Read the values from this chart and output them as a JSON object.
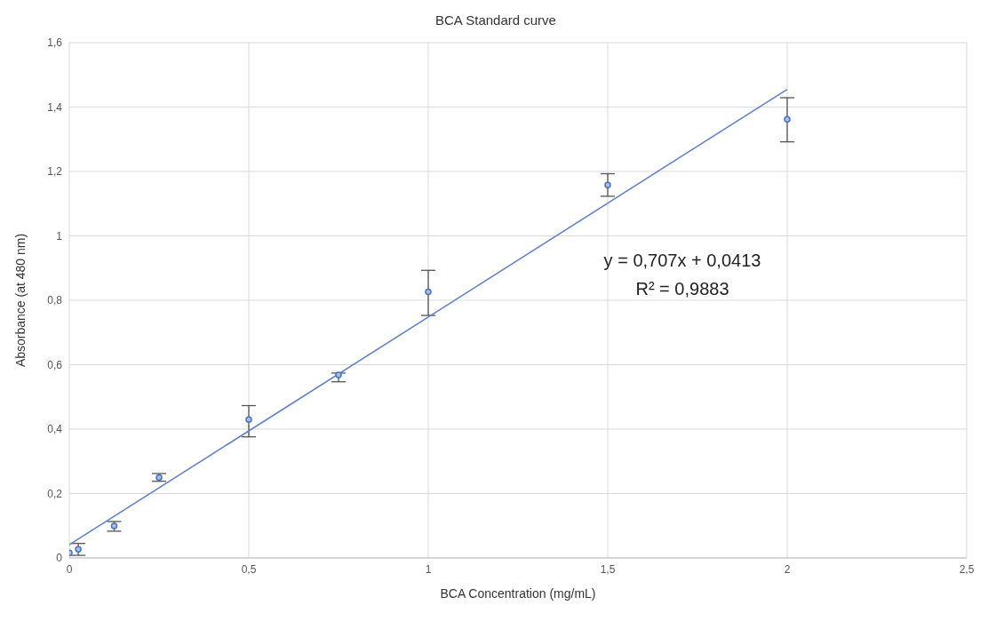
{
  "chart_data": {
    "type": "scatter",
    "title": "BCA Standard curve",
    "xlabel": "BCA Concentration (mg/mL)",
    "ylabel": "Absorbance (at 480 nm)",
    "x": [
      0,
      0.025,
      0.125,
      0.25,
      0.5,
      0.75,
      1,
      1.5,
      2
    ],
    "series": [
      {
        "color": "#4472c4",
        "marker": "circle",
        "values": [
          0.016,
          0.027,
          0.099,
          0.25,
          0.43,
          0.568,
          0.826,
          1.158,
          1.362
        ],
        "errors": [
          null,
          [
            0.008,
            0.045
          ],
          [
            0.083,
            0.113
          ],
          [
            0.238,
            0.262
          ],
          [
            0.376,
            0.473
          ],
          [
            0.547,
            0.574
          ],
          [
            0.753,
            0.893
          ],
          [
            1.123,
            1.193
          ],
          [
            1.292,
            1.429
          ]
        ]
      },
      {
        "type": "line",
        "color": "#5b7fc7",
        "x": [
          0,
          2
        ],
        "values": [
          0.041,
          1.455
        ]
      }
    ],
    "annotations": [
      "y = 0,707x + 0,0413",
      "R² = 0,9883"
    ],
    "xlim": [
      0,
      2.5
    ],
    "xticks": [
      0,
      {
        "value": 0.5,
        "label": "0,5"
      },
      1,
      {
        "value": 1.5,
        "label": "1,5"
      },
      2,
      {
        "value": 2.5,
        "label": "2,5"
      }
    ],
    "ylim": [
      0,
      1.6
    ],
    "yticks": [
      0,
      {
        "value": 0.2,
        "label": "0,2"
      },
      {
        "value": 0.4,
        "label": "0,4"
      },
      {
        "value": 0.6,
        "label": "0,6"
      },
      {
        "value": 0.8,
        "label": "0,8"
      },
      1,
      {
        "value": 1.2,
        "label": "1,2"
      },
      {
        "value": 1.4,
        "label": "1,4"
      },
      {
        "value": 1.6,
        "label": "1,6"
      }
    ],
    "grid": true,
    "legend": false
  }
}
